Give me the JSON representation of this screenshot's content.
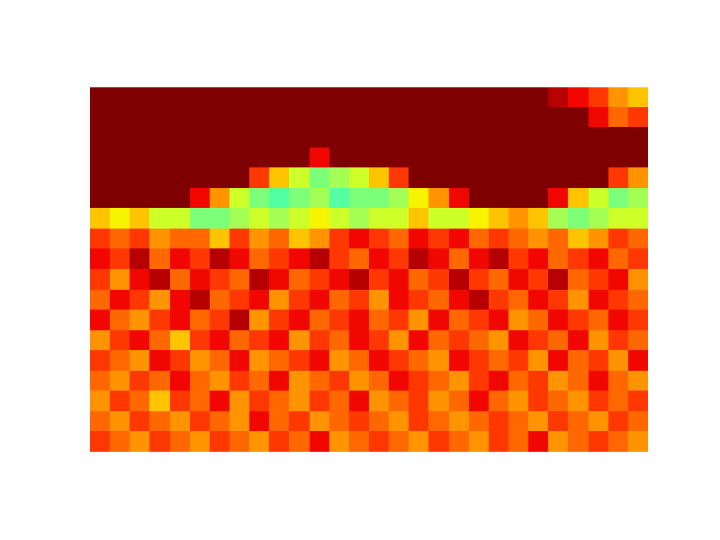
{
  "chart_data": {
    "type": "heatmap",
    "color": "jet",
    "tick_labels": false,
    "clim": [
      0,
      1
    ],
    "cells": [
      [
        1,
        1,
        1,
        1,
        1,
        1,
        1,
        1,
        1,
        1,
        1,
        1,
        1,
        1,
        1,
        1,
        1,
        1,
        1,
        1,
        1,
        1,
        1,
        0.95,
        0.9,
        0.85,
        0.75,
        0.7
      ],
      [
        1,
        1,
        1,
        1,
        1,
        1,
        1,
        1,
        1,
        1,
        1,
        1,
        1,
        1,
        1,
        1,
        1,
        1,
        1,
        1,
        1,
        1,
        1,
        1,
        1,
        0.9,
        0.8,
        0.85
      ],
      [
        1,
        1,
        1,
        1,
        1,
        1,
        1,
        1,
        1,
        1,
        1,
        1,
        1,
        1,
        1,
        1,
        1,
        1,
        1,
        1,
        1,
        1,
        1,
        1,
        1,
        1,
        1,
        1
      ],
      [
        1,
        1,
        1,
        1,
        1,
        1,
        1,
        1,
        1,
        1,
        1,
        0.9,
        1,
        1,
        1,
        1,
        1,
        1,
        1,
        1,
        1,
        1,
        1,
        1,
        1,
        1,
        1,
        1
      ],
      [
        1,
        1,
        1,
        1,
        1,
        1,
        1,
        1,
        0.85,
        0.7,
        0.6,
        0.5,
        0.55,
        0.6,
        0.7,
        0.85,
        1,
        1,
        1,
        1,
        1,
        1,
        1,
        1,
        1,
        1,
        0.85,
        0.75
      ],
      [
        1,
        1,
        1,
        1,
        1,
        0.9,
        0.75,
        0.6,
        0.5,
        0.45,
        0.5,
        0.55,
        0.45,
        0.5,
        0.5,
        0.55,
        0.65,
        0.75,
        0.9,
        1,
        1,
        1,
        1,
        0.9,
        0.7,
        0.6,
        0.5,
        0.55
      ],
      [
        0.7,
        0.65,
        0.7,
        0.6,
        0.6,
        0.5,
        0.5,
        0.55,
        0.6,
        0.55,
        0.6,
        0.65,
        0.6,
        0.55,
        0.6,
        0.6,
        0.7,
        0.6,
        0.6,
        0.65,
        0.7,
        0.75,
        0.7,
        0.55,
        0.5,
        0.55,
        0.6,
        0.6
      ],
      [
        0.85,
        0.8,
        0.85,
        0.75,
        0.8,
        0.8,
        0.7,
        0.85,
        0.75,
        0.8,
        0.7,
        0.75,
        0.85,
        0.9,
        0.85,
        0.8,
        0.9,
        0.85,
        0.9,
        0.8,
        0.85,
        0.8,
        0.75,
        0.8,
        0.7,
        0.75,
        0.85,
        0.8
      ],
      [
        0.9,
        0.85,
        0.95,
        0.8,
        0.9,
        0.85,
        0.95,
        0.9,
        0.8,
        0.85,
        0.9,
        0.95,
        0.85,
        0.8,
        0.9,
        0.85,
        0.95,
        0.9,
        0.8,
        0.9,
        0.95,
        0.85,
        0.9,
        0.8,
        0.85,
        0.9,
        0.8,
        0.85
      ],
      [
        0.85,
        0.75,
        0.9,
        0.95,
        0.8,
        0.9,
        0.85,
        0.8,
        0.95,
        0.9,
        0.8,
        0.85,
        0.9,
        0.95,
        0.85,
        0.9,
        0.8,
        0.85,
        0.95,
        0.85,
        0.8,
        0.9,
        0.85,
        0.95,
        0.8,
        0.85,
        0.9,
        0.75
      ],
      [
        0.8,
        0.9,
        0.85,
        0.75,
        0.9,
        0.95,
        0.8,
        0.85,
        0.9,
        0.75,
        0.85,
        0.9,
        0.8,
        0.85,
        0.75,
        0.9,
        0.85,
        0.8,
        0.9,
        0.95,
        0.85,
        0.8,
        0.9,
        0.85,
        0.75,
        0.9,
        0.85,
        0.8
      ],
      [
        0.9,
        0.8,
        0.75,
        0.85,
        0.9,
        0.8,
        0.85,
        0.95,
        0.75,
        0.85,
        0.9,
        0.8,
        0.85,
        0.9,
        0.8,
        0.85,
        0.75,
        0.9,
        0.8,
        0.85,
        0.9,
        0.75,
        0.8,
        0.9,
        0.85,
        0.8,
        0.9,
        0.85
      ],
      [
        0.75,
        0.85,
        0.9,
        0.8,
        0.7,
        0.85,
        0.9,
        0.8,
        0.85,
        0.9,
        0.75,
        0.85,
        0.8,
        0.9,
        0.85,
        0.75,
        0.9,
        0.8,
        0.85,
        0.8,
        0.75,
        0.9,
        0.85,
        0.8,
        0.9,
        0.75,
        0.85,
        0.8
      ],
      [
        0.85,
        0.8,
        0.75,
        0.9,
        0.85,
        0.75,
        0.8,
        0.9,
        0.75,
        0.8,
        0.85,
        0.9,
        0.75,
        0.8,
        0.9,
        0.85,
        0.8,
        0.75,
        0.9,
        0.85,
        0.8,
        0.85,
        0.75,
        0.9,
        0.8,
        0.85,
        0.75,
        0.9
      ],
      [
        0.8,
        0.75,
        0.85,
        0.8,
        0.9,
        0.8,
        0.75,
        0.85,
        0.8,
        0.9,
        0.75,
        0.8,
        0.85,
        0.75,
        0.8,
        0.9,
        0.85,
        0.8,
        0.75,
        0.85,
        0.9,
        0.8,
        0.85,
        0.75,
        0.8,
        0.9,
        0.8,
        0.75
      ],
      [
        0.75,
        0.85,
        0.8,
        0.7,
        0.85,
        0.8,
        0.9,
        0.75,
        0.85,
        0.8,
        0.75,
        0.85,
        0.8,
        0.9,
        0.75,
        0.8,
        0.85,
        0.75,
        0.8,
        0.9,
        0.8,
        0.75,
        0.85,
        0.8,
        0.75,
        0.85,
        0.8,
        0.85
      ],
      [
        0.8,
        0.75,
        0.85,
        0.8,
        0.75,
        0.85,
        0.8,
        0.75,
        0.9,
        0.8,
        0.85,
        0.75,
        0.8,
        0.85,
        0.8,
        0.75,
        0.85,
        0.8,
        0.75,
        0.8,
        0.85,
        0.8,
        0.75,
        0.85,
        0.8,
        0.75,
        0.85,
        0.8
      ],
      [
        0.85,
        0.8,
        0.75,
        0.85,
        0.8,
        0.75,
        0.85,
        0.8,
        0.75,
        0.85,
        0.8,
        0.9,
        0.75,
        0.8,
        0.85,
        0.8,
        0.75,
        0.85,
        0.8,
        0.75,
        0.85,
        0.8,
        0.9,
        0.75,
        0.8,
        0.85,
        0.8,
        0.75
      ]
    ]
  }
}
